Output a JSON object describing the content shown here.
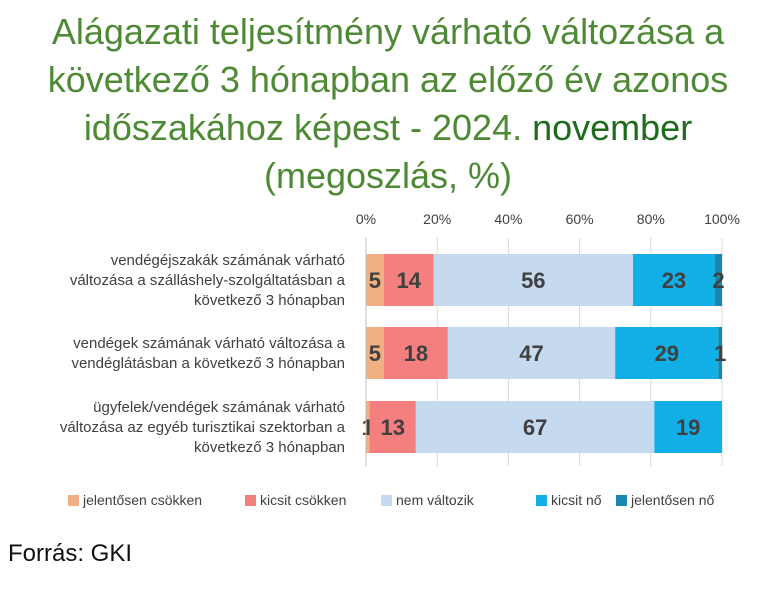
{
  "title": {
    "line1": "Alágazati teljesítmény várható változása a",
    "line2": "következő 3 hónapban az előző év azonos",
    "line3_a": "időszakához képest - 2024. ",
    "line3_b": "november",
    "line4": "(megoszlás, %)"
  },
  "source": "Forrás: GKI",
  "chart_data": {
    "type": "bar",
    "orientation": "horizontal",
    "stacked": true,
    "xlim": [
      0,
      100
    ],
    "x_ticks": [
      "0%",
      "20%",
      "40%",
      "60%",
      "80%",
      "100%"
    ],
    "categories": [
      [
        "vendégéjszakák számának várható",
        "változása a szálláshely-szolgáltatásban a",
        "következő 3 hónapban"
      ],
      [
        "vendégek számának várható változása a",
        "vendéglátásban a következő 3 hónapban"
      ],
      [
        "ügyfelek/vendégek számának várható",
        "változása az egyéb turisztikai szektorban a",
        "következő 3 hónapban"
      ]
    ],
    "series": [
      {
        "name": "jelentősen csökken",
        "color": "#f0b083",
        "values": [
          5,
          5,
          1
        ]
      },
      {
        "name": "kicsit csökken",
        "color": "#f57f7f",
        "values": [
          14,
          18,
          13
        ]
      },
      {
        "name": "nem változik",
        "color": "#c5d9ef",
        "values": [
          56,
          47,
          67
        ]
      },
      {
        "name": "kicsit nő",
        "color": "#12aee6",
        "values": [
          23,
          29,
          19
        ]
      },
      {
        "name": "jelentősen nő",
        "color": "#1a87b0",
        "values": [
          2,
          1,
          0
        ]
      }
    ],
    "data_labels": [
      [
        "5",
        "14",
        "56",
        "23",
        "2"
      ],
      [
        "5",
        "18",
        "47",
        "29",
        "1"
      ],
      [
        "1",
        "13",
        "67",
        "19",
        ""
      ]
    ],
    "legend_position": "bottom",
    "grid": true
  }
}
